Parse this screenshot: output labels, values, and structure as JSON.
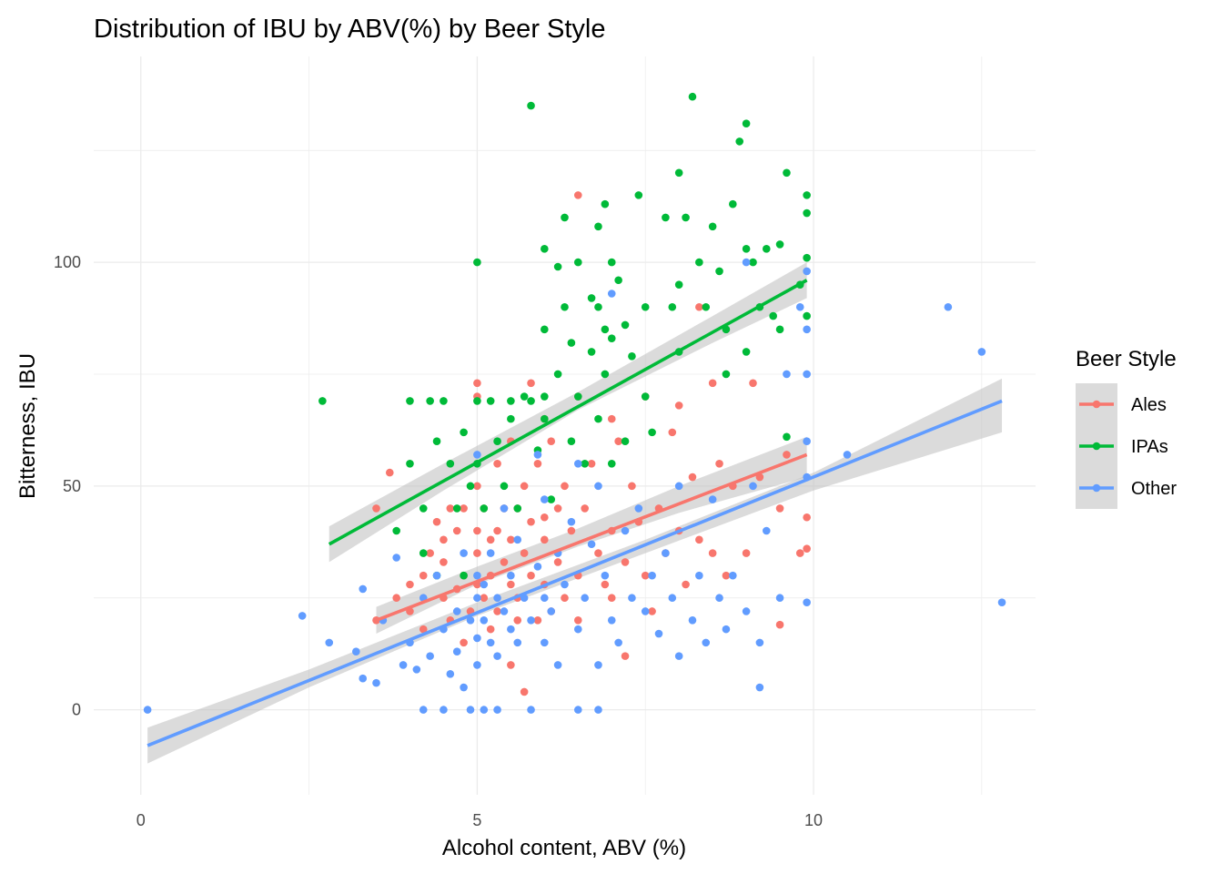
{
  "chart_data": {
    "type": "scatter",
    "title": "Distribution of IBU by ABV(%) by Beer Style",
    "xlabel": "Alcohol content, ABV (%)",
    "ylabel": "Bitterness, IBU",
    "xlim": [
      -0.7,
      13.3
    ],
    "ylim": [
      -19,
      146
    ],
    "x_ticks": [
      0,
      5,
      10
    ],
    "y_ticks": [
      0,
      50,
      100
    ],
    "grid": true,
    "legend": {
      "title": "Beer Style",
      "placement": "right",
      "entries": [
        "Ales",
        "IPAs",
        "Other"
      ]
    },
    "colors": {
      "Ales": "#F8766D",
      "IPAs": "#00BA38",
      "Other": "#619CFF",
      "ribbon": "#bdbdbd",
      "grid": "#ebebeb"
    },
    "series": [
      {
        "name": "Ales",
        "color": "#F8766D",
        "trend": {
          "x": [
            3.5,
            9.9
          ],
          "y": [
            20,
            57
          ]
        },
        "ribbon": {
          "x": [
            3.5,
            5.0,
            6.5,
            8.0,
            9.9
          ],
          "lower": [
            17,
            28,
            36.5,
            44,
            52
          ],
          "upper": [
            23,
            32,
            40.5,
            50,
            61
          ]
        },
        "points": [
          [
            3.5,
            45
          ],
          [
            3.7,
            53
          ],
          [
            3.5,
            20
          ],
          [
            3.8,
            25
          ],
          [
            4.0,
            28
          ],
          [
            4.0,
            22
          ],
          [
            4.2,
            30
          ],
          [
            4.2,
            18
          ],
          [
            4.3,
            35
          ],
          [
            4.4,
            42
          ],
          [
            4.5,
            25
          ],
          [
            4.5,
            38
          ],
          [
            4.5,
            33
          ],
          [
            4.6,
            45
          ],
          [
            4.6,
            20
          ],
          [
            4.7,
            27
          ],
          [
            4.7,
            40
          ],
          [
            4.8,
            15
          ],
          [
            4.8,
            30
          ],
          [
            4.8,
            45
          ],
          [
            4.9,
            22
          ],
          [
            5.0,
            40
          ],
          [
            5.0,
            35
          ],
          [
            5.0,
            28
          ],
          [
            5.0,
            70
          ],
          [
            5.0,
            73
          ],
          [
            5.0,
            50
          ],
          [
            5.1,
            25
          ],
          [
            5.1,
            45
          ],
          [
            5.2,
            30
          ],
          [
            5.2,
            18
          ],
          [
            5.2,
            38
          ],
          [
            5.3,
            40
          ],
          [
            5.3,
            55
          ],
          [
            5.3,
            22
          ],
          [
            5.4,
            45
          ],
          [
            5.4,
            33
          ],
          [
            5.5,
            28
          ],
          [
            5.5,
            60
          ],
          [
            5.5,
            10
          ],
          [
            5.5,
            38
          ],
          [
            5.6,
            45
          ],
          [
            5.6,
            25
          ],
          [
            5.6,
            20
          ],
          [
            5.7,
            4
          ],
          [
            5.7,
            50
          ],
          [
            5.7,
            35
          ],
          [
            5.8,
            73
          ],
          [
            5.8,
            30
          ],
          [
            5.8,
            42
          ],
          [
            5.9,
            20
          ],
          [
            5.9,
            55
          ],
          [
            6.0,
            43
          ],
          [
            6.0,
            65
          ],
          [
            6.0,
            38
          ],
          [
            6.0,
            28
          ],
          [
            6.1,
            22
          ],
          [
            6.1,
            60
          ],
          [
            6.2,
            45
          ],
          [
            6.2,
            33
          ],
          [
            6.3,
            50
          ],
          [
            6.3,
            25
          ],
          [
            6.4,
            40
          ],
          [
            6.5,
            115
          ],
          [
            6.5,
            70
          ],
          [
            6.5,
            30
          ],
          [
            6.5,
            20
          ],
          [
            6.6,
            45
          ],
          [
            6.7,
            55
          ],
          [
            6.8,
            35
          ],
          [
            6.9,
            28
          ],
          [
            7.0,
            65
          ],
          [
            7.0,
            40
          ],
          [
            7.0,
            25
          ],
          [
            7.1,
            60
          ],
          [
            7.2,
            33
          ],
          [
            7.2,
            12
          ],
          [
            7.3,
            50
          ],
          [
            7.4,
            42
          ],
          [
            7.5,
            30
          ],
          [
            7.5,
            70
          ],
          [
            7.6,
            22
          ],
          [
            7.7,
            45
          ],
          [
            7.8,
            35
          ],
          [
            7.9,
            62
          ],
          [
            8.0,
            40
          ],
          [
            8.0,
            68
          ],
          [
            8.1,
            28
          ],
          [
            8.2,
            52
          ],
          [
            8.3,
            38
          ],
          [
            8.3,
            90
          ],
          [
            8.5,
            73
          ],
          [
            8.5,
            35
          ],
          [
            8.6,
            55
          ],
          [
            8.7,
            30
          ],
          [
            8.8,
            50
          ],
          [
            9.0,
            35
          ],
          [
            9.1,
            73
          ],
          [
            9.2,
            52
          ],
          [
            9.5,
            45
          ],
          [
            9.5,
            19
          ],
          [
            9.6,
            57
          ],
          [
            9.8,
            35
          ],
          [
            9.9,
            43
          ],
          [
            9.9,
            36
          ]
        ]
      },
      {
        "name": "IPAs",
        "color": "#00BA38",
        "trend": {
          "x": [
            2.8,
            9.9
          ],
          "y": [
            37,
            96
          ]
        },
        "ribbon": {
          "x": [
            2.8,
            4.5,
            6.5,
            8.5,
            9.9
          ],
          "lower": [
            33,
            49,
            67,
            82,
            92
          ],
          "upper": [
            41,
            55,
            71,
            88,
            100
          ]
        },
        "points": [
          [
            2.7,
            69
          ],
          [
            3.8,
            40
          ],
          [
            4.0,
            55
          ],
          [
            4.0,
            69
          ],
          [
            4.2,
            45
          ],
          [
            4.2,
            35
          ],
          [
            4.3,
            69
          ],
          [
            4.4,
            60
          ],
          [
            4.4,
            30
          ],
          [
            4.5,
            69
          ],
          [
            4.6,
            55
          ],
          [
            4.7,
            45
          ],
          [
            4.8,
            62
          ],
          [
            4.8,
            30
          ],
          [
            4.9,
            50
          ],
          [
            5.0,
            100
          ],
          [
            5.0,
            69
          ],
          [
            5.0,
            55
          ],
          [
            5.1,
            45
          ],
          [
            5.2,
            69
          ],
          [
            5.3,
            60
          ],
          [
            5.4,
            50
          ],
          [
            5.5,
            65
          ],
          [
            5.5,
            69
          ],
          [
            5.6,
            45
          ],
          [
            5.7,
            70
          ],
          [
            5.8,
            135
          ],
          [
            5.8,
            69
          ],
          [
            5.9,
            58
          ],
          [
            6.0,
            103
          ],
          [
            6.0,
            85
          ],
          [
            6.0,
            70
          ],
          [
            6.0,
            65
          ],
          [
            6.1,
            47
          ],
          [
            6.2,
            99
          ],
          [
            6.2,
            75
          ],
          [
            6.3,
            110
          ],
          [
            6.3,
            90
          ],
          [
            6.4,
            82
          ],
          [
            6.4,
            60
          ],
          [
            6.5,
            100
          ],
          [
            6.5,
            70
          ],
          [
            6.6,
            55
          ],
          [
            6.7,
            92
          ],
          [
            6.7,
            80
          ],
          [
            6.8,
            108
          ],
          [
            6.8,
            90
          ],
          [
            6.8,
            65
          ],
          [
            6.9,
            113
          ],
          [
            6.9,
            85
          ],
          [
            6.9,
            75
          ],
          [
            7.0,
            100
          ],
          [
            7.0,
            83
          ],
          [
            7.0,
            55
          ],
          [
            7.1,
            96
          ],
          [
            7.2,
            86
          ],
          [
            7.2,
            60
          ],
          [
            7.3,
            79
          ],
          [
            7.4,
            115
          ],
          [
            7.5,
            90
          ],
          [
            7.5,
            70
          ],
          [
            7.6,
            62
          ],
          [
            7.8,
            110
          ],
          [
            7.9,
            90
          ],
          [
            8.0,
            120
          ],
          [
            8.0,
            95
          ],
          [
            8.0,
            80
          ],
          [
            8.1,
            110
          ],
          [
            8.2,
            137
          ],
          [
            8.3,
            100
          ],
          [
            8.4,
            90
          ],
          [
            8.5,
            108
          ],
          [
            8.6,
            98
          ],
          [
            8.7,
            85
          ],
          [
            8.7,
            75
          ],
          [
            8.8,
            113
          ],
          [
            8.9,
            127
          ],
          [
            9.0,
            131
          ],
          [
            9.0,
            103
          ],
          [
            9.0,
            80
          ],
          [
            9.1,
            100
          ],
          [
            9.2,
            90
          ],
          [
            9.3,
            103
          ],
          [
            9.4,
            88
          ],
          [
            9.5,
            104
          ],
          [
            9.5,
            85
          ],
          [
            9.6,
            120
          ],
          [
            9.6,
            61
          ],
          [
            9.8,
            95
          ],
          [
            9.9,
            115
          ],
          [
            9.9,
            111
          ],
          [
            9.9,
            101
          ],
          [
            9.9,
            88
          ]
        ]
      },
      {
        "name": "Other",
        "color": "#619CFF",
        "trend": {
          "x": [
            0.1,
            12.8
          ],
          "y": [
            -8,
            69
          ]
        },
        "ribbon": {
          "x": [
            0.1,
            2.5,
            5.0,
            7.5,
            10.0,
            12.8
          ],
          "lower": [
            -12,
            5,
            21,
            35,
            49,
            62
          ],
          "upper": [
            -4,
            9,
            24,
            38,
            53,
            74
          ]
        },
        "points": [
          [
            0.1,
            0
          ],
          [
            2.4,
            21
          ],
          [
            2.8,
            15
          ],
          [
            3.2,
            13
          ],
          [
            3.3,
            27
          ],
          [
            3.3,
            7
          ],
          [
            3.5,
            6
          ],
          [
            3.6,
            20
          ],
          [
            3.8,
            34
          ],
          [
            3.9,
            10
          ],
          [
            4.0,
            15
          ],
          [
            4.1,
            9
          ],
          [
            4.2,
            0
          ],
          [
            4.2,
            25
          ],
          [
            4.3,
            12
          ],
          [
            4.4,
            30
          ],
          [
            4.5,
            0
          ],
          [
            4.5,
            18
          ],
          [
            4.6,
            8
          ],
          [
            4.7,
            22
          ],
          [
            4.7,
            13
          ],
          [
            4.8,
            35
          ],
          [
            4.8,
            5
          ],
          [
            4.9,
            20
          ],
          [
            4.9,
            0
          ],
          [
            5.0,
            16
          ],
          [
            5.0,
            25
          ],
          [
            5.0,
            57
          ],
          [
            5.0,
            30
          ],
          [
            5.0,
            10
          ],
          [
            5.1,
            0
          ],
          [
            5.1,
            20
          ],
          [
            5.1,
            28
          ],
          [
            5.2,
            15
          ],
          [
            5.2,
            35
          ],
          [
            5.3,
            0
          ],
          [
            5.3,
            25
          ],
          [
            5.3,
            12
          ],
          [
            5.4,
            22
          ],
          [
            5.4,
            45
          ],
          [
            5.5,
            18
          ],
          [
            5.5,
            30
          ],
          [
            5.6,
            15
          ],
          [
            5.6,
            38
          ],
          [
            5.7,
            25
          ],
          [
            5.8,
            0
          ],
          [
            5.8,
            20
          ],
          [
            5.9,
            57
          ],
          [
            5.9,
            32
          ],
          [
            6.0,
            15
          ],
          [
            6.0,
            47
          ],
          [
            6.0,
            25
          ],
          [
            6.1,
            22
          ],
          [
            6.2,
            35
          ],
          [
            6.2,
            10
          ],
          [
            6.3,
            28
          ],
          [
            6.4,
            42
          ],
          [
            6.5,
            0
          ],
          [
            6.5,
            18
          ],
          [
            6.5,
            55
          ],
          [
            6.6,
            25
          ],
          [
            6.7,
            37
          ],
          [
            6.8,
            0
          ],
          [
            6.8,
            10
          ],
          [
            6.8,
            50
          ],
          [
            6.9,
            30
          ],
          [
            7.0,
            20
          ],
          [
            7.0,
            93
          ],
          [
            7.1,
            15
          ],
          [
            7.2,
            40
          ],
          [
            7.3,
            25
          ],
          [
            7.4,
            45
          ],
          [
            7.5,
            22
          ],
          [
            7.6,
            30
          ],
          [
            7.7,
            17
          ],
          [
            7.8,
            35
          ],
          [
            7.9,
            25
          ],
          [
            8.0,
            12
          ],
          [
            8.0,
            50
          ],
          [
            8.2,
            20
          ],
          [
            8.3,
            30
          ],
          [
            8.4,
            15
          ],
          [
            8.5,
            47
          ],
          [
            8.6,
            25
          ],
          [
            8.7,
            18
          ],
          [
            8.8,
            30
          ],
          [
            9.0,
            100
          ],
          [
            9.0,
            22
          ],
          [
            9.1,
            50
          ],
          [
            9.2,
            15
          ],
          [
            9.2,
            5
          ],
          [
            9.3,
            40
          ],
          [
            9.5,
            25
          ],
          [
            9.6,
            75
          ],
          [
            9.8,
            90
          ],
          [
            9.9,
            98
          ],
          [
            9.9,
            85
          ],
          [
            9.9,
            75
          ],
          [
            9.9,
            60
          ],
          [
            9.9,
            52
          ],
          [
            9.9,
            24
          ],
          [
            10.5,
            57
          ],
          [
            12.0,
            90
          ],
          [
            12.5,
            80
          ],
          [
            12.8,
            24
          ]
        ]
      }
    ]
  }
}
